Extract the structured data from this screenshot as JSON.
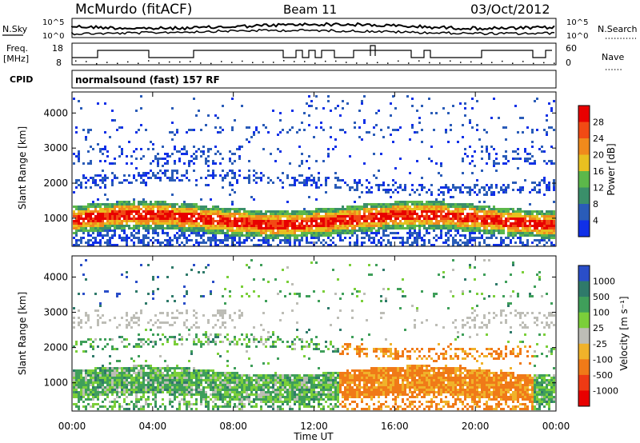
{
  "header": {
    "title": "McMurdo (fitACF)",
    "beam": "Beam 11",
    "date": "03/Oct/2012"
  },
  "noise_panel": {
    "left_label": "N.Sky",
    "right_label": "N.Search",
    "left_ticks": [
      "10^5",
      "10^0"
    ],
    "right_ticks": [
      "10^5",
      "10^0"
    ]
  },
  "freq_panel": {
    "left_label_1": "Freq.",
    "left_label_2": "[MHz]",
    "left_ticks": [
      "18",
      "8"
    ],
    "right_ticks": [
      "60",
      "0"
    ],
    "right_label": "Nave"
  },
  "cpid_panel": {
    "label": "CPID",
    "mode": "normalsound (fast) 157 RF"
  },
  "chart_data": [
    {
      "type": "heatmap",
      "ylabel": "Slant Range [km]",
      "xlabel": "Time UT",
      "y_ticks": [
        "1000",
        "2000",
        "3000",
        "4000"
      ],
      "colorbar_label": "Power [dB]",
      "colorbar_ticks": [
        "4",
        "8",
        "12",
        "16",
        "20",
        "24",
        "28"
      ],
      "colors": [
        "#1030e8",
        "#2a5cb8",
        "#3a8f6a",
        "#5cb84a",
        "#e8c020",
        "#f08a1c",
        "#f24a14",
        "#e80000"
      ]
    },
    {
      "type": "heatmap",
      "ylabel": "Slant Range [km]",
      "xlabel": "Time UT",
      "y_ticks": [
        "1000",
        "2000",
        "3000",
        "4000"
      ],
      "colorbar_label": "Velocity [m s⁻¹]",
      "colorbar_ticks": [
        "1000",
        "500",
        "100",
        "25",
        "-25",
        "-100",
        "-500",
        "-1000"
      ],
      "colors": [
        "#2a4ec8",
        "#2f7a6a",
        "#3f9f5a",
        "#7bcf3a",
        "#bdbdb6",
        "#f0b22a",
        "#f07a18",
        "#ee3a14",
        "#e80000"
      ]
    }
  ],
  "x_axis": {
    "ticks": [
      "00:00",
      "04:00",
      "08:00",
      "12:00",
      "16:00",
      "20:00",
      "00:00"
    ],
    "label": "Time UT"
  }
}
